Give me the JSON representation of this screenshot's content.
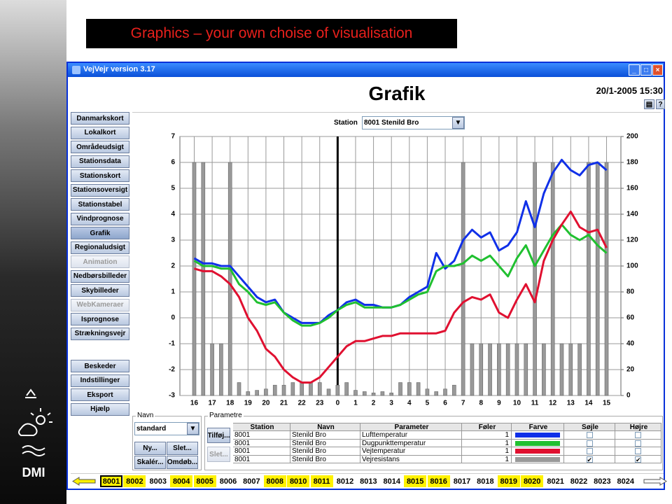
{
  "slide_title": "Graphics – your own choise of visualisation",
  "logo_text": "DMI",
  "window": {
    "title": "VejVejr version 3.17",
    "heading": "Grafik",
    "timestamp": "20/1-2005 15:30",
    "nav": [
      {
        "label": "Danmarkskort",
        "state": "normal"
      },
      {
        "label": "Lokalkort",
        "state": "normal"
      },
      {
        "label": "Områdeudsigt",
        "state": "normal"
      },
      {
        "label": "Stationsdata",
        "state": "normal"
      },
      {
        "label": "Stationskort",
        "state": "normal"
      },
      {
        "label": "Stationsoversigt",
        "state": "normal"
      },
      {
        "label": "Stationstabel",
        "state": "normal"
      },
      {
        "label": "Vindprognose",
        "state": "normal"
      },
      {
        "label": "Grafik",
        "state": "active"
      },
      {
        "label": "Regionaludsigt",
        "state": "normal"
      },
      {
        "label": "Animation",
        "state": "disabled"
      },
      {
        "label": "Nedbørsbilleder",
        "state": "normal"
      },
      {
        "label": "Skybilleder",
        "state": "normal"
      },
      {
        "label": "WebKameraer",
        "state": "disabled"
      },
      {
        "label": "Isprognose",
        "state": "normal"
      },
      {
        "label": "Strækningsvejr",
        "state": "normal"
      }
    ],
    "nav_lower": [
      "Beskeder",
      "Indstillinger",
      "Eksport",
      "Hjælp"
    ],
    "station_label": "Station",
    "station_value": "8001 Stenild Bro",
    "navn_panel": {
      "title": "Navn",
      "value": "standard",
      "buttons": [
        "Ny...",
        "Slet...",
        "Skalér...",
        "Omdøb..."
      ]
    },
    "param_panel": {
      "title": "Parametre",
      "buttons": [
        "Tilføj...",
        "Slet..."
      ],
      "headers": [
        "Station",
        "Navn",
        "Parameter",
        "Føler",
        "Farve",
        "Søjle",
        "Højre"
      ],
      "rows": [
        [
          "8001",
          "Stenild Bro",
          1,
          false,
          false
        ],
        [
          "8001",
          "Stenild Bro",
          1,
          false,
          false
        ],
        [
          "8001",
          "Stenild Bro",
          1,
          false,
          false
        ],
        [
          "8001",
          "Stenild Bro",
          1,
          true,
          true
        ]
      ]
    },
    "station_strip": [
      {
        "label": "8001",
        "state": "selected"
      },
      {
        "label": "8002",
        "state": "highlight"
      },
      {
        "label": "8003",
        "state": "normal"
      },
      {
        "label": "8004",
        "state": "highlight"
      },
      {
        "label": "8005",
        "state": "highlight"
      },
      {
        "label": "8006",
        "state": "normal"
      },
      {
        "label": "8007",
        "state": "normal"
      },
      {
        "label": "8008",
        "state": "highlight"
      },
      {
        "label": "8010",
        "state": "highlight"
      },
      {
        "label": "8011",
        "state": "highlight"
      },
      {
        "label": "8012",
        "state": "normal"
      },
      {
        "label": "8013",
        "state": "normal"
      },
      {
        "label": "8014",
        "state": "normal"
      },
      {
        "label": "8015",
        "state": "highlight"
      },
      {
        "label": "8016",
        "state": "highlight"
      },
      {
        "label": "8017",
        "state": "normal"
      },
      {
        "label": "8018",
        "state": "normal"
      },
      {
        "label": "8019",
        "state": "highlight"
      },
      {
        "label": "8020",
        "state": "highlight"
      },
      {
        "label": "8021",
        "state": "normal"
      },
      {
        "label": "8022",
        "state": "normal"
      },
      {
        "label": "8023",
        "state": "normal"
      },
      {
        "label": "8024",
        "state": "normal"
      }
    ]
  },
  "chart_data": {
    "type": "line",
    "x": [
      0,
      0.5,
      1,
      1.5,
      2,
      2.5,
      3,
      3.5,
      4,
      4.5,
      5,
      5.5,
      6,
      6.5,
      7,
      7.5,
      8,
      8.5,
      9,
      9.5,
      10,
      10.5,
      11,
      11.5,
      12,
      12.5,
      13,
      13.5,
      14,
      14.5,
      15,
      15.5,
      16,
      16.5,
      17,
      17.5,
      18,
      18.5,
      19,
      19.5,
      20,
      20.5,
      21,
      21.5,
      22,
      22.5,
      23
    ],
    "xlim": [
      -0.8,
      23.8
    ],
    "xticks": [
      {
        "value": 0,
        "label": "16"
      },
      {
        "value": 1,
        "label": "17"
      },
      {
        "value": 2,
        "label": "18"
      },
      {
        "value": 3,
        "label": "19"
      },
      {
        "value": 4,
        "label": "20"
      },
      {
        "value": 5,
        "label": "21"
      },
      {
        "value": 6,
        "label": "22"
      },
      {
        "value": 7,
        "label": "23"
      },
      {
        "value": 8,
        "label": "0"
      },
      {
        "value": 9,
        "label": "1"
      },
      {
        "value": 10,
        "label": "2"
      },
      {
        "value": 11,
        "label": "3"
      },
      {
        "value": 12,
        "label": "4"
      },
      {
        "value": 13,
        "label": "5"
      },
      {
        "value": 14,
        "label": "6"
      },
      {
        "value": 15,
        "label": "7"
      },
      {
        "value": 16,
        "label": "8"
      },
      {
        "value": 17,
        "label": "9"
      },
      {
        "value": 18,
        "label": "10"
      },
      {
        "value": 19,
        "label": "11"
      },
      {
        "value": 20,
        "label": "12"
      },
      {
        "value": 21,
        "label": "13"
      },
      {
        "value": 22,
        "label": "14"
      },
      {
        "value": 23,
        "label": "15"
      }
    ],
    "ylim": [
      -3,
      7
    ],
    "yticks": [
      -3,
      -2,
      -1,
      0,
      1,
      2,
      3,
      4,
      5,
      6,
      7
    ],
    "y2lim": [
      0,
      200
    ],
    "y2ticks": [
      0,
      20,
      40,
      60,
      80,
      100,
      120,
      140,
      160,
      180,
      200
    ],
    "grid": true,
    "vline": 8,
    "series": [
      {
        "name": "Lufttemperatur",
        "color": "#1030e8",
        "values": [
          2.3,
          2.1,
          2.1,
          2.0,
          2.0,
          1.6,
          1.2,
          0.8,
          0.6,
          0.7,
          0.2,
          0.0,
          -0.2,
          -0.2,
          -0.2,
          0.1,
          0.3,
          0.6,
          0.7,
          0.5,
          0.5,
          0.4,
          0.4,
          0.5,
          0.8,
          1.0,
          1.2,
          2.5,
          1.9,
          2.2,
          3.0,
          3.4,
          3.1,
          3.3,
          2.6,
          2.8,
          3.3,
          4.5,
          3.5,
          4.8,
          5.6,
          6.1,
          5.7,
          5.5,
          5.9,
          6.0,
          5.7
        ]
      },
      {
        "name": "Dugpunkttemperatur",
        "color": "#20c030",
        "values": [
          2.2,
          2.0,
          2.0,
          1.9,
          1.9,
          1.3,
          1.0,
          0.6,
          0.5,
          0.6,
          0.2,
          -0.1,
          -0.3,
          -0.3,
          -0.2,
          0.0,
          0.3,
          0.5,
          0.6,
          0.4,
          0.4,
          0.4,
          0.4,
          0.5,
          0.7,
          0.9,
          1.0,
          1.8,
          2.0,
          2.0,
          2.1,
          2.4,
          2.2,
          2.4,
          2.0,
          1.6,
          2.3,
          2.8,
          2.0,
          2.6,
          3.2,
          3.6,
          3.2,
          3.0,
          3.2,
          2.8,
          2.5
        ]
      },
      {
        "name": "Vejtemperatur",
        "color": "#e01030",
        "values": [
          1.9,
          1.8,
          1.8,
          1.6,
          1.3,
          0.8,
          0.0,
          -0.5,
          -1.2,
          -1.5,
          -2.0,
          -2.3,
          -2.5,
          -2.5,
          -2.3,
          -1.9,
          -1.5,
          -1.1,
          -0.9,
          -0.9,
          -0.8,
          -0.7,
          -0.7,
          -0.6,
          -0.6,
          -0.6,
          -0.6,
          -0.6,
          -0.5,
          0.2,
          0.6,
          0.8,
          0.7,
          0.9,
          0.2,
          0.0,
          0.7,
          1.3,
          0.6,
          2.2,
          3.0,
          3.6,
          4.1,
          3.5,
          3.3,
          3.4,
          2.7
        ]
      },
      {
        "name": "Vejresistans",
        "color": "#999999",
        "type": "bar",
        "axis": "y2",
        "values": [
          180,
          180,
          40,
          40,
          180,
          10,
          3,
          4,
          5,
          8,
          8,
          10,
          10,
          10,
          10,
          5,
          8,
          10,
          4,
          3,
          2,
          3,
          2,
          10,
          10,
          10,
          5,
          3,
          5,
          8,
          180,
          40,
          40,
          40,
          40,
          40,
          40,
          40,
          180,
          40,
          180,
          40,
          40,
          40,
          180,
          180,
          180
        ]
      }
    ]
  }
}
